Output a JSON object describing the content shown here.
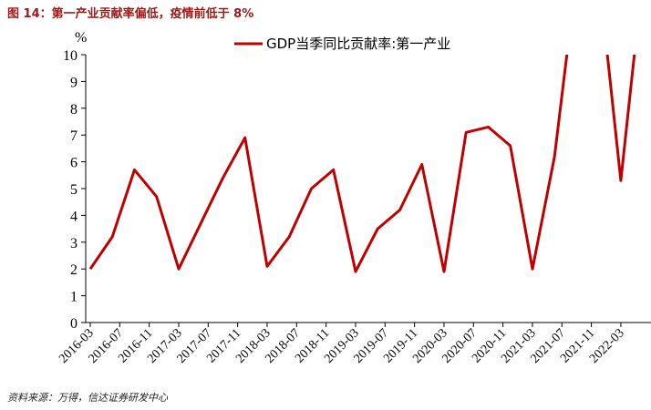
{
  "header": {
    "title": "图 14：第一产业贡献率偏低，疫情前低于 8%"
  },
  "footer": {
    "source": "资料来源：万得，信达证券研发中心"
  },
  "chart_data": {
    "type": "line",
    "ylabel": "%",
    "ylim": [
      0,
      10
    ],
    "yticks": [
      "0",
      "1",
      "2",
      "3",
      "4",
      "5",
      "6",
      "7",
      "8",
      "9",
      "10"
    ],
    "xticks": [
      "2016-03",
      "2016-07",
      "2016-11",
      "2017-03",
      "2017-07",
      "2017-11",
      "2018-03",
      "2018-07",
      "2018-11",
      "2019-03",
      "2019-07",
      "2019-11",
      "2020-03",
      "2020-07",
      "2020-11",
      "2021-03",
      "2021-07",
      "2021-11",
      "2022-03"
    ],
    "legend": {
      "position": "top-right"
    },
    "colors": {
      "series": "#c00000",
      "axis": "#000000"
    },
    "series": [
      {
        "name": "GDP当季同比贡献率:第一产业",
        "x": [
          "2016-03",
          "2016-06",
          "2016-09",
          "2016-12",
          "2017-03",
          "2017-06",
          "2017-09",
          "2017-12",
          "2018-03",
          "2018-06",
          "2018-09",
          "2018-12",
          "2019-03",
          "2019-06",
          "2019-09",
          "2019-12",
          "2020-03",
          "2020-06",
          "2020-09",
          "2020-12",
          "2021-03",
          "2021-06",
          "2021-09",
          "2021-12",
          "2022-03",
          "2022-06"
        ],
        "values": [
          2.0,
          3.2,
          5.7,
          4.7,
          2.0,
          3.7,
          5.4,
          6.9,
          2.1,
          3.2,
          5.0,
          5.7,
          1.9,
          3.5,
          4.2,
          5.9,
          1.9,
          7.1,
          7.3,
          6.6,
          2.0,
          6.2,
          13.0,
          13.0,
          5.3,
          13.0
        ]
      }
    ]
  }
}
